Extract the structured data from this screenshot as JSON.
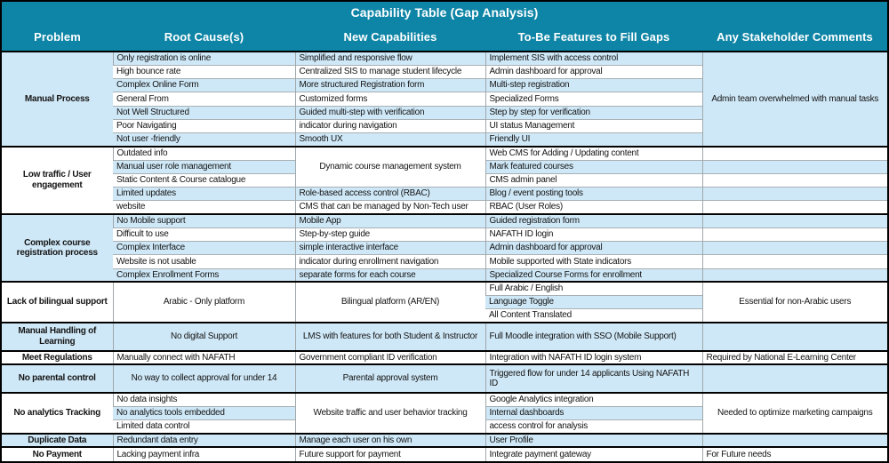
{
  "title": "Capability Table (Gap Analysis)",
  "colors": {
    "header_bg": "#0e85a6",
    "header_text": "#ffffff",
    "row_alt_blue": "#cfe8f7",
    "row_white": "#ffffff",
    "group_border": "#000000",
    "cell_border": "#a8b0b4"
  },
  "columns": [
    {
      "label": "Problem"
    },
    {
      "label": "Root Cause(s)"
    },
    {
      "label": "New Capabilities"
    },
    {
      "label": "To-Be Features to Fill Gaps"
    },
    {
      "label": "Any Stakeholder Comments"
    }
  ],
  "groups": [
    {
      "problem": "Manual Process",
      "root": [
        {
          "t": "Only registration is online"
        },
        {
          "t": "High bounce rate"
        },
        {
          "t": "Complex Online Form"
        },
        {
          "t": "General From"
        },
        {
          "t": "Not Well Structured"
        },
        {
          "t": "Poor Navigating"
        },
        {
          "t": "Not user -friendly"
        }
      ],
      "newcap": [
        {
          "t": "Simplified and responsive flow"
        },
        {
          "t": "Centralized SIS to manage student lifecycle"
        },
        {
          "t": "More structured Registration form"
        },
        {
          "t": "Customized forms"
        },
        {
          "t": "Guided multi-step with verification"
        },
        {
          "t": "indicator during navigation"
        },
        {
          "t": "Smooth UX"
        }
      ],
      "tobe": [
        {
          "t": "Implement SIS with access control"
        },
        {
          "t": "Admin dashboard for approval"
        },
        {
          "t": "Multi-step registration"
        },
        {
          "t": "Specialized Forms"
        },
        {
          "t": "Step by step for verification"
        },
        {
          "t": "UI status Management"
        },
        {
          "t": "Friendly UI"
        }
      ],
      "comments": [
        {
          "t": "Admin team overwhelmed with manual tasks",
          "span": 7,
          "align": "c"
        }
      ]
    },
    {
      "problem": "Low traffic / User engagement",
      "root": [
        {
          "t": "Outdated info"
        },
        {
          "t": "Manual user role management"
        },
        {
          "t": "Static Content & Course catalogue"
        },
        {
          "t": "Limited updates"
        },
        {
          "t": "website"
        }
      ],
      "newcap": [
        {
          "t": "Dynamic course management system",
          "span": 3,
          "align": "c"
        },
        {
          "t": "Role-based access control (RBAC)"
        },
        {
          "t": "CMS that can be managed by Non-Tech user"
        }
      ],
      "tobe": [
        {
          "t": "Web CMS for Adding / Updating content"
        },
        {
          "t": "Mark featured courses"
        },
        {
          "t": "CMS admin panel"
        },
        {
          "t": "Blog / event posting tools"
        },
        {
          "t": "RBAC (User Roles)"
        }
      ],
      "comments": [
        {},
        {},
        {},
        {},
        {}
      ]
    },
    {
      "problem": "Complex course registration process",
      "root": [
        {
          "t": "No Mobile support"
        },
        {
          "t": "Difficult to use"
        },
        {
          "t": "Complex Interface"
        },
        {
          "t": "Website is not usable"
        },
        {
          "t": "Complex Enrollment Forms"
        }
      ],
      "newcap": [
        {
          "t": "Mobile App"
        },
        {
          "t": "Step-by-step guide"
        },
        {
          "t": "simple interactive interface"
        },
        {
          "t": "indicator during enrollment navigation"
        },
        {
          "t": "separate forms for each course"
        }
      ],
      "tobe": [
        {
          "t": "Guided registration form"
        },
        {
          "t": "NAFATH ID login"
        },
        {
          "t": "Admin dashboard for approval"
        },
        {
          "t": "Mobile supported with State indicators"
        },
        {
          "t": "Specialized Course Forms for enrollment"
        }
      ],
      "comments": [
        {},
        {},
        {},
        {},
        {}
      ]
    },
    {
      "problem": "Lack of bilingual support",
      "root": [
        {
          "t": "Arabic - Only platform",
          "span": 3,
          "align": "c"
        }
      ],
      "newcap": [
        {
          "t": "Bilingual platform (AR/EN)",
          "span": 3,
          "align": "c"
        }
      ],
      "tobe": [
        {
          "t": "Full Arabic / English"
        },
        {
          "t": "Language Toggle"
        },
        {
          "t": "All Content Translated"
        }
      ],
      "comments": [
        {
          "t": "Essential for non-Arabic users",
          "span": 3,
          "align": "c"
        }
      ]
    },
    {
      "problem": "Manual Handling of Learning",
      "tall": true,
      "root": [
        {
          "t": "No digital Support",
          "align": "c"
        }
      ],
      "newcap": [
        {
          "t": "LMS with features for both Student & Instructor",
          "align": "c"
        }
      ],
      "tobe": [
        {
          "t": "Full Moodle integration with SSO (Mobile Support)"
        }
      ],
      "comments": [
        {}
      ]
    },
    {
      "problem": "Meet Regulations",
      "root": [
        {
          "t": "Manually connect with NAFATH"
        }
      ],
      "newcap": [
        {
          "t": "Government compliant ID verification"
        }
      ],
      "tobe": [
        {
          "t": "Integration with NAFATH ID login system"
        }
      ],
      "comments": [
        {
          "t": "Required by National E-Learning Center"
        }
      ]
    },
    {
      "problem": "No parental control",
      "tall": true,
      "root": [
        {
          "t": "No way to collect approval for under 14",
          "align": "c"
        }
      ],
      "newcap": [
        {
          "t": "Parental approval system",
          "align": "c"
        }
      ],
      "tobe": [
        {
          "t": "Triggered flow for under 14 applicants Using NAFATH ID",
          "wrap": true
        }
      ],
      "comments": [
        {}
      ]
    },
    {
      "problem": "No analytics Tracking",
      "root": [
        {
          "t": "No data insights"
        },
        {
          "t": "No analytics tools embedded"
        },
        {
          "t": "Limited data control"
        }
      ],
      "newcap": [
        {
          "t": "Website traffic and user behavior tracking",
          "span": 3,
          "align": "c"
        }
      ],
      "tobe": [
        {
          "t": "Google Analytics integration"
        },
        {
          "t": "Internal dashboards"
        },
        {
          "t": "access control for analysis"
        }
      ],
      "comments": [
        {
          "t": "Needed to optimize marketing campaigns",
          "span": 3,
          "align": "c"
        }
      ]
    },
    {
      "problem": "Duplicate Data",
      "root": [
        {
          "t": "Redundant data entry"
        }
      ],
      "newcap": [
        {
          "t": "Manage each user on his own"
        }
      ],
      "tobe": [
        {
          "t": "User Profile"
        }
      ],
      "comments": [
        {}
      ]
    },
    {
      "problem": "No Payment",
      "root": [
        {
          "t": "Lacking payment infra"
        }
      ],
      "newcap": [
        {
          "t": "Future support for payment"
        }
      ],
      "tobe": [
        {
          "t": "Integrate payment gateway"
        }
      ],
      "comments": [
        {
          "t": "For Future needs"
        }
      ]
    }
  ]
}
